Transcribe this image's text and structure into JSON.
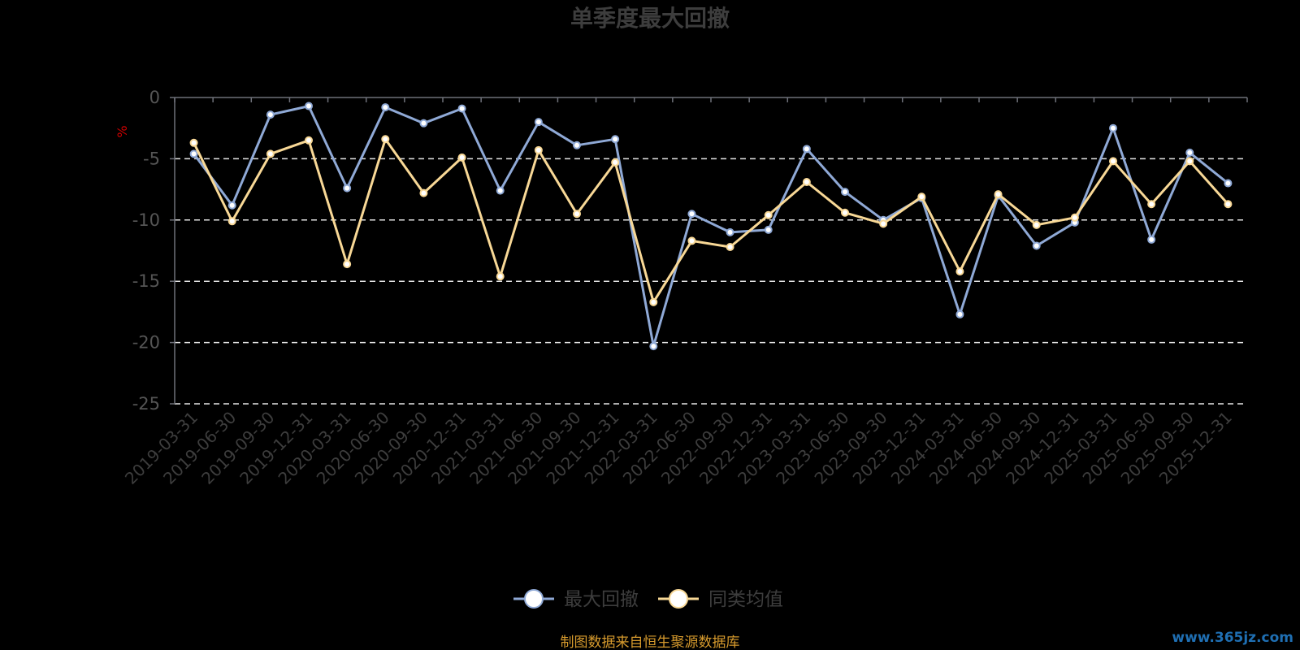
{
  "chart_data": {
    "type": "line",
    "title": "单季度最大回撤",
    "ylabel": "%",
    "ylim": [
      -25,
      0
    ],
    "yticks": [
      0,
      -5,
      -10,
      -15,
      -20,
      -25
    ],
    "ytick_labels": [
      "0",
      "-5",
      "-10",
      "-15",
      "-20",
      "-25"
    ],
    "grid": true,
    "legend_position": "bottom-center",
    "categories": [
      "2019-03-31",
      "2019-06-30",
      "2019-09-30",
      "2019-12-31",
      "2020-03-31",
      "2020-06-30",
      "2020-09-30",
      "2020-12-31",
      "2021-03-31",
      "2021-06-30",
      "2021-09-30",
      "2021-12-31",
      "2022-03-31",
      "2022-06-30",
      "2022-09-30",
      "2022-12-31",
      "2023-03-31",
      "2023-06-30",
      "2023-09-30",
      "2023-12-31",
      "2024-03-31",
      "2024-06-30",
      "2024-09-30",
      "2024-12-31",
      "2025-03-31",
      "2025-06-30",
      "2025-09-30",
      "2025-12-31"
    ],
    "series": [
      {
        "name": "最大回撤",
        "color": "#8fa9d6",
        "values": [
          -4.6,
          -8.8,
          -1.4,
          -0.7,
          -7.4,
          -0.8,
          -2.1,
          -0.9,
          -7.6,
          -2.0,
          -3.9,
          -3.4,
          -20.3,
          -9.5,
          -11.0,
          -10.8,
          -4.2,
          -7.7,
          -10.0,
          -8.2,
          -17.7,
          -8.0,
          -12.1,
          -10.2,
          -2.5,
          -11.6,
          -4.5,
          -7.0
        ]
      },
      {
        "name": "同类均值",
        "color": "#f8d896",
        "values": [
          -3.7,
          -10.1,
          -4.6,
          -3.5,
          -13.6,
          -3.4,
          -7.8,
          -4.9,
          -14.6,
          -4.3,
          -9.5,
          -5.3,
          -16.7,
          -11.7,
          -12.2,
          -9.6,
          -6.9,
          -9.4,
          -10.3,
          -8.1,
          -14.2,
          -7.9,
          -10.4,
          -9.8,
          -5.2,
          -8.7,
          -5.2,
          -8.7
        ]
      }
    ],
    "source_text": "制图数据来自恒生聚源数据库",
    "watermark": "www.365jz.com"
  }
}
